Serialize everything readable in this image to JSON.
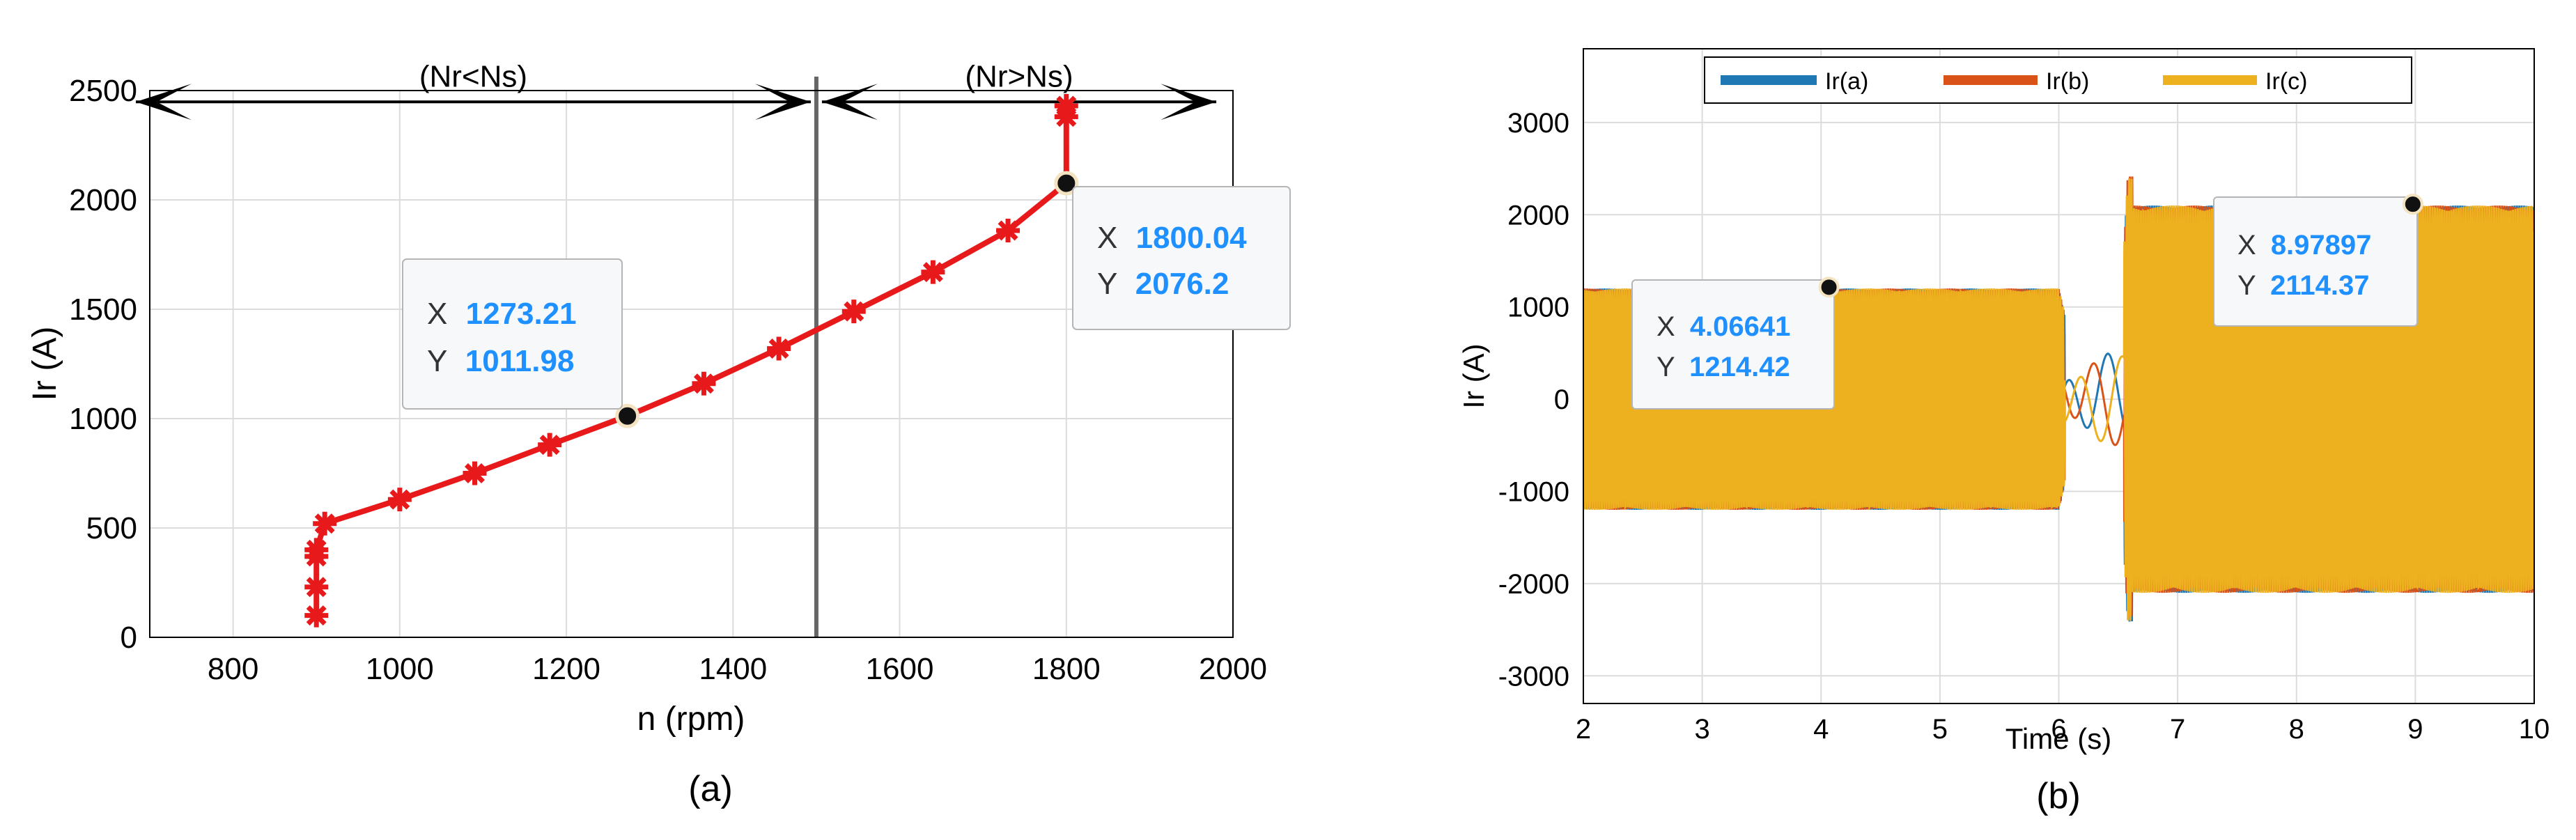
{
  "panels": {
    "a": {
      "caption": "(a)"
    },
    "b": {
      "caption": "(b)"
    }
  },
  "colors": {
    "series_a": "#e8191b",
    "ir_a": "#1f77b4",
    "ir_b": "#d95319",
    "ir_c": "#edb120",
    "datatip_value": "#1e90ff",
    "grid": "#dcdcdc",
    "divider": "#666666"
  },
  "chart_data": [
    {
      "type": "line",
      "xlabel": "n (rpm)",
      "ylabel": "Ir (A)",
      "xlim": [
        700,
        2000
      ],
      "ylim": [
        0,
        2500
      ],
      "xticks": [
        800,
        1000,
        1200,
        1400,
        1600,
        1800,
        2000
      ],
      "yticks": [
        0,
        500,
        1000,
        1500,
        2000,
        2500
      ],
      "grid": true,
      "vertical_line_x": 1500,
      "series": [
        {
          "x": [
            900,
            900,
            900,
            900,
            910,
            1000,
            1090,
            1180,
            1273.21,
            1365,
            1455,
            1545,
            1640,
            1730,
            1800.04,
            1800,
            1800
          ],
          "y": [
            100,
            230,
            370,
            400,
            520,
            630,
            750,
            880,
            1011.98,
            1160,
            1320,
            1490,
            1670,
            1860,
            2076.2,
            2380,
            2430
          ]
        }
      ],
      "annotations": [
        {
          "text": "(Nr<Ns)",
          "x_from": 700,
          "x_to": 1500,
          "y": 2480
        },
        {
          "text": "(Nr>Ns)",
          "x_from": 1500,
          "x_to": 1980,
          "y": 2480
        }
      ],
      "datatips": [
        {
          "x_label": "X",
          "y_label": "Y",
          "x": "1273.21",
          "y": "1011.98"
        },
        {
          "x_label": "X",
          "y_label": "Y",
          "x": "1800.04",
          "y": "2076.2"
        }
      ]
    },
    {
      "type": "line",
      "xlabel": "Time (s)",
      "ylabel": "Ir (A)",
      "xlim": [
        2,
        10
      ],
      "ylim": [
        -3300,
        3800
      ],
      "xticks": [
        2,
        3,
        4,
        5,
        6,
        7,
        8,
        9,
        10
      ],
      "yticks": [
        -3000,
        -2000,
        -1000,
        0,
        1000,
        2000,
        3000
      ],
      "grid": true,
      "legend": "top",
      "series": [
        {
          "name": "Ir(a)",
          "color": "#1f77b4",
          "envelope": [
            [
              2,
              1200
            ],
            [
              6,
              1200
            ],
            [
              6.15,
              350
            ],
            [
              6.5,
              350
            ],
            [
              6.58,
              2100
            ],
            [
              10,
              2100
            ]
          ]
        },
        {
          "name": "Ir(b)",
          "color": "#d95319",
          "envelope": [
            [
              2,
              1200
            ],
            [
              6,
              1200
            ],
            [
              6.15,
              350
            ],
            [
              6.5,
              350
            ],
            [
              6.58,
              2100
            ],
            [
              10,
              2100
            ]
          ]
        },
        {
          "name": "Ir(c)",
          "color": "#edb120",
          "envelope": [
            [
              2,
              1200
            ],
            [
              6,
              1200
            ],
            [
              6.15,
              350
            ],
            [
              6.5,
              350
            ],
            [
              6.58,
              2100
            ],
            [
              10,
              2100
            ]
          ]
        }
      ],
      "datatips": [
        {
          "x_label": "X",
          "y_label": "Y",
          "x": "4.06641",
          "y": "1214.42"
        },
        {
          "x_label": "X",
          "y_label": "Y",
          "x": "8.97897",
          "y": "2114.37"
        }
      ]
    }
  ]
}
